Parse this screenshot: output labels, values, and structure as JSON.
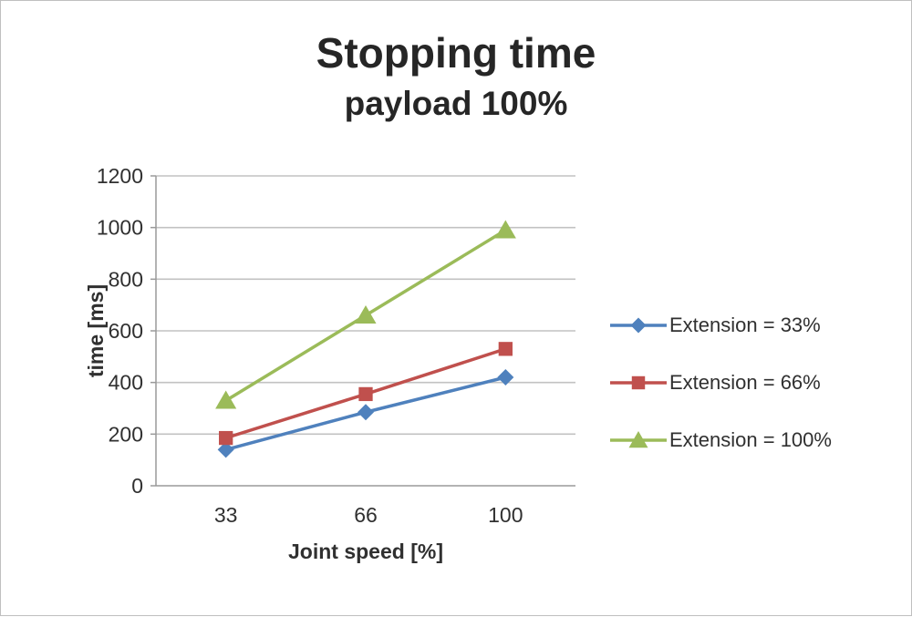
{
  "chart_data": {
    "type": "line",
    "title": "Stopping time",
    "subtitle": "payload 100%",
    "xlabel": "Joint speed [%]",
    "ylabel": "time [ms]",
    "categories": [
      "33",
      "66",
      "100"
    ],
    "series": [
      {
        "name": "Extension = 33%",
        "values": [
          140,
          285,
          420
        ],
        "color": "#4f81bd",
        "marker": "diamond"
      },
      {
        "name": "Extension = 66%",
        "values": [
          185,
          355,
          530
        ],
        "color": "#c0504d",
        "marker": "square"
      },
      {
        "name": "Extension = 100%",
        "values": [
          330,
          660,
          990
        ],
        "color": "#9bbb59",
        "marker": "triangle"
      }
    ],
    "ylim": [
      0,
      1200
    ],
    "ytick_step": 200,
    "grid": true,
    "legend_position": "right",
    "colors": {
      "gridline": "#c2c2c2",
      "axis": "#9a9a9a",
      "text": "#303030"
    }
  }
}
